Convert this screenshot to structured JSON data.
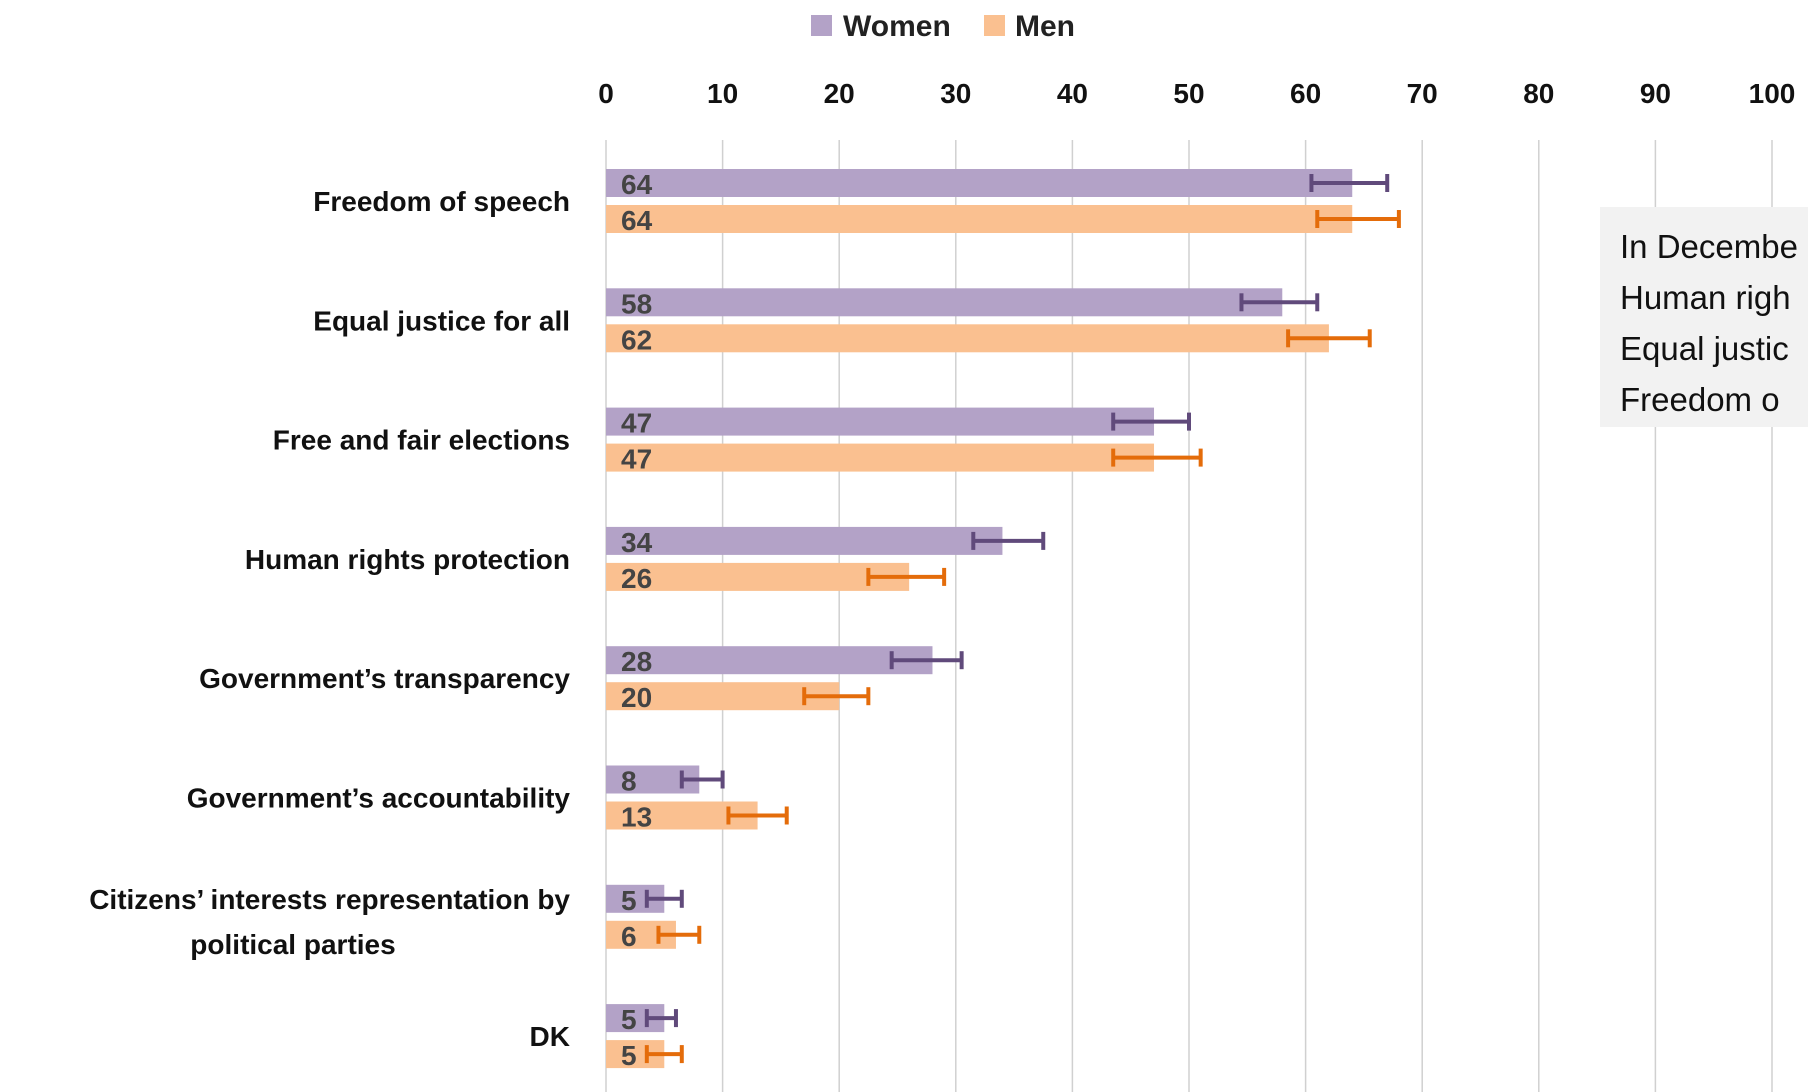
{
  "chart_data": {
    "type": "bar",
    "orientation": "horizontal",
    "xlim": [
      0,
      100
    ],
    "ticks": [
      0,
      10,
      20,
      30,
      40,
      50,
      60,
      70,
      80,
      90,
      100
    ],
    "grid": true,
    "legend_position": "top",
    "categories": [
      [
        "Freedom of speech"
      ],
      [
        "Equal justice for all"
      ],
      [
        "Free and fair elections"
      ],
      [
        "Human rights protection"
      ],
      [
        "Government’s transparency"
      ],
      [
        "Government’s accountability"
      ],
      [
        "Citizens’ interests representation by",
        "political parties"
      ],
      [
        "DK"
      ]
    ],
    "series": [
      {
        "name": "Women",
        "color": "#b3a2c7",
        "error_color": "#604a7b",
        "values": [
          64,
          58,
          47,
          34,
          28,
          8,
          5,
          5
        ],
        "error_low": [
          60.5,
          54.5,
          43.5,
          31.5,
          24.5,
          6.5,
          3.5,
          3.5
        ],
        "error_high": [
          67,
          61,
          50,
          37.5,
          30.5,
          10,
          6.5,
          6
        ]
      },
      {
        "name": "Men",
        "color": "#fac090",
        "error_color": "#e46c0a",
        "values": [
          64,
          62,
          47,
          26,
          20,
          13,
          6,
          5
        ],
        "error_low": [
          61,
          58.5,
          43.5,
          22.5,
          17,
          10.5,
          4.5,
          3.5
        ],
        "error_high": [
          68,
          65.5,
          51,
          29,
          22.5,
          15.5,
          8,
          6.5
        ]
      }
    ]
  },
  "note": {
    "lines": [
      "In Decembe",
      "Human righ",
      "Equal justic",
      "Freedom o"
    ]
  }
}
